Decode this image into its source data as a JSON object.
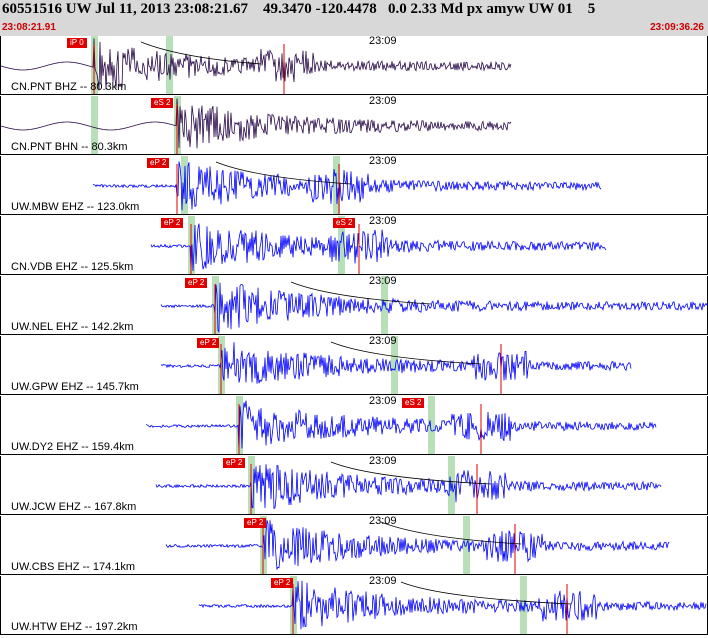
{
  "header": {
    "title": "60551516 UW Jul 11, 2013 23:08:21.67    49.3470 -120.4478   0.0 2.33 Md px amyw UW 01    5",
    "time_start": "23:08:21.91",
    "time_end": "23:09:36.26"
  },
  "colors": {
    "trace_blue": "#0000ff",
    "trace_dark": "#2a0a4a",
    "pick": "#e00000",
    "window": "#b8e0b8"
  },
  "panels": [
    {
      "station": "CN.PNT BHZ -- 80.3km",
      "time_tick": "23:09",
      "pick_tags": [
        "iP 0"
      ],
      "trace_color": "dark"
    },
    {
      "station": "CN.PNT BHN -- 80.3km",
      "time_tick": "23:09",
      "pick_tags": [
        "eS 2"
      ],
      "trace_color": "dark"
    },
    {
      "station": "UW.MBW EHZ -- 123.0km",
      "time_tick": "23:09",
      "pick_tags": [
        "eP 2"
      ],
      "trace_color": "blue"
    },
    {
      "station": "CN.VDB EHZ -- 125.5km",
      "time_tick": "23:09",
      "pick_tags": [
        "eP 2",
        "eS 2"
      ],
      "trace_color": "blue"
    },
    {
      "station": "UW.NEL EHZ -- 142.2km",
      "time_tick": "23:09",
      "pick_tags": [
        "eP 2"
      ],
      "trace_color": "blue"
    },
    {
      "station": "UW.GPW EHZ -- 145.7km",
      "time_tick": "23:09",
      "pick_tags": [
        "eP 2"
      ],
      "trace_color": "blue"
    },
    {
      "station": "UW.DY2 EHZ -- 159.4km",
      "time_tick": "23:09",
      "pick_tags": [
        "eS 2"
      ],
      "trace_color": "blue"
    },
    {
      "station": "UW.JCW EHZ -- 167.8km",
      "time_tick": "23:09",
      "pick_tags": [
        "eP 2"
      ],
      "trace_color": "blue"
    },
    {
      "station": "UW.CBS EHZ -- 174.1km",
      "time_tick": "23:09",
      "pick_tags": [
        "eP 2"
      ],
      "trace_color": "blue"
    },
    {
      "station": "UW.HTW EHZ -- 197.2km",
      "time_tick": "23:09",
      "pick_tags": [
        "eP 2"
      ],
      "trace_color": "blue"
    }
  ]
}
